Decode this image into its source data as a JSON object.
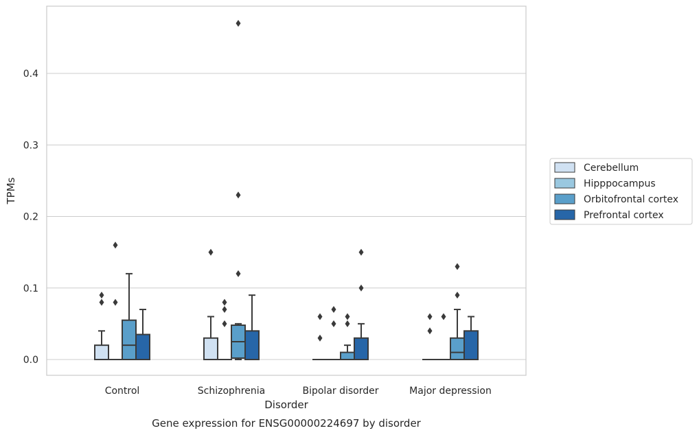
{
  "chart_data": {
    "type": "box",
    "title": "Gene expression for ENSG00000224697 by disorder",
    "xlabel": "Disorder",
    "ylabel": "TPMs",
    "categories": [
      "Control",
      "Schizophrenia",
      "Bipolar disorder",
      "Major depression"
    ],
    "ylim": [
      -0.023,
      0.493
    ],
    "yticks": [
      0.0,
      0.1,
      0.2,
      0.3,
      0.4
    ],
    "ytick_labels": [
      "0.0",
      "0.1",
      "0.2",
      "0.3",
      "0.4"
    ],
    "grid": "horizontal",
    "legend_placement": "right",
    "series": [
      {
        "name": "Cerebellum",
        "color": "#d0e1f2",
        "boxes": [
          {
            "q1": 0.0,
            "median": 0.0,
            "q3": 0.02,
            "whisker_low": 0.0,
            "whisker_high": 0.04,
            "outliers": [
              0.08,
              0.09
            ]
          },
          {
            "q1": 0.0,
            "median": 0.0,
            "q3": 0.03,
            "whisker_low": 0.0,
            "whisker_high": 0.06,
            "outliers": [
              0.15
            ]
          },
          {
            "q1": 0.0,
            "median": 0.0,
            "q3": 0.0,
            "whisker_low": 0.0,
            "whisker_high": 0.0,
            "outliers": [
              0.03,
              0.06
            ]
          },
          {
            "q1": 0.0,
            "median": 0.0,
            "q3": 0.0,
            "whisker_low": 0.0,
            "whisker_high": 0.0,
            "outliers": [
              0.04,
              0.06
            ]
          }
        ]
      },
      {
        "name": "Hipppocampus",
        "color": "#9ac8e0",
        "boxes": [
          {
            "q1": 0.0,
            "median": 0.0,
            "q3": 0.0,
            "whisker_low": 0.0,
            "whisker_high": 0.0,
            "outliers": [
              0.08,
              0.16
            ]
          },
          {
            "q1": 0.0,
            "median": 0.0,
            "q3": 0.0,
            "whisker_low": 0.0,
            "whisker_high": 0.0,
            "outliers": [
              0.05,
              0.07,
              0.08
            ]
          },
          {
            "q1": 0.0,
            "median": 0.0,
            "q3": 0.0,
            "whisker_low": 0.0,
            "whisker_high": 0.0,
            "outliers": [
              0.05,
              0.07
            ]
          },
          {
            "q1": 0.0,
            "median": 0.0,
            "q3": 0.0,
            "whisker_low": 0.0,
            "whisker_high": 0.0,
            "outliers": [
              0.06
            ]
          }
        ]
      },
      {
        "name": "Orbitofrontal cortex",
        "color": "#5a9fca",
        "boxes": [
          {
            "q1": 0.0,
            "median": 0.02,
            "q3": 0.055,
            "whisker_low": 0.0,
            "whisker_high": 0.12,
            "outliers": []
          },
          {
            "q1": 0.002,
            "median": 0.025,
            "q3": 0.048,
            "whisker_low": 0.0,
            "whisker_high": 0.05,
            "outliers": [
              0.12,
              0.23,
              0.47
            ]
          },
          {
            "q1": 0.0,
            "median": 0.0,
            "q3": 0.01,
            "whisker_low": 0.0,
            "whisker_high": 0.02,
            "outliers": [
              0.05,
              0.06
            ]
          },
          {
            "q1": 0.0,
            "median": 0.01,
            "q3": 0.03,
            "whisker_low": 0.0,
            "whisker_high": 0.07,
            "outliers": [
              0.09,
              0.13
            ]
          }
        ]
      },
      {
        "name": "Prefrontal cortex",
        "color": "#2766a8",
        "boxes": [
          {
            "q1": 0.0,
            "median": 0.0,
            "q3": 0.035,
            "whisker_low": 0.0,
            "whisker_high": 0.07,
            "outliers": []
          },
          {
            "q1": 0.0,
            "median": 0.0,
            "q3": 0.04,
            "whisker_low": 0.0,
            "whisker_high": 0.09,
            "outliers": []
          },
          {
            "q1": 0.0,
            "median": 0.0,
            "q3": 0.03,
            "whisker_low": 0.0,
            "whisker_high": 0.05,
            "outliers": [
              0.1,
              0.15
            ]
          },
          {
            "q1": 0.0,
            "median": 0.0,
            "q3": 0.04,
            "whisker_low": 0.0,
            "whisker_high": 0.06,
            "outliers": []
          }
        ]
      }
    ]
  }
}
